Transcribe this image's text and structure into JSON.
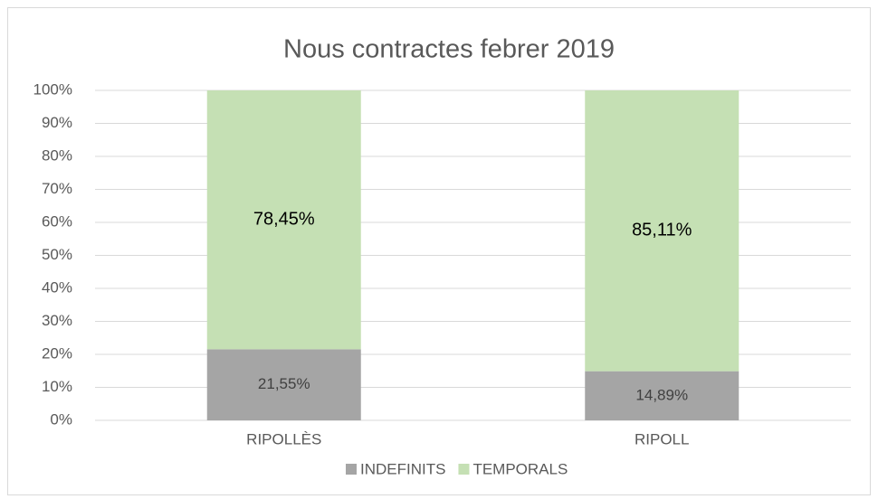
{
  "chart_data": {
    "type": "stacked_bar",
    "title": "Nous contractes febrer 2019",
    "categories": [
      "RIPOLLÈS",
      "RIPOLL"
    ],
    "series": [
      {
        "name": "INDEFINITS",
        "color": "#a5a5a5",
        "values": [
          21.55,
          14.89
        ],
        "value_labels": [
          "21,55%",
          "14,89%"
        ]
      },
      {
        "name": "TEMPORALS",
        "color": "#c5e0b4",
        "values": [
          78.45,
          85.11
        ],
        "value_labels": [
          "78,45%",
          "85,11%"
        ]
      }
    ],
    "ylim": [
      0,
      100
    ],
    "yticks": [
      {
        "value": 0,
        "label": "0%"
      },
      {
        "value": 10,
        "label": "10%"
      },
      {
        "value": 20,
        "label": "20%"
      },
      {
        "value": 30,
        "label": "30%"
      },
      {
        "value": 40,
        "label": "40%"
      },
      {
        "value": 50,
        "label": "50%"
      },
      {
        "value": 60,
        "label": "60%"
      },
      {
        "value": 70,
        "label": "70%"
      },
      {
        "value": 80,
        "label": "80%"
      },
      {
        "value": 90,
        "label": "90%"
      },
      {
        "value": 100,
        "label": "100%"
      }
    ],
    "grid": true,
    "legend": "bottom"
  }
}
